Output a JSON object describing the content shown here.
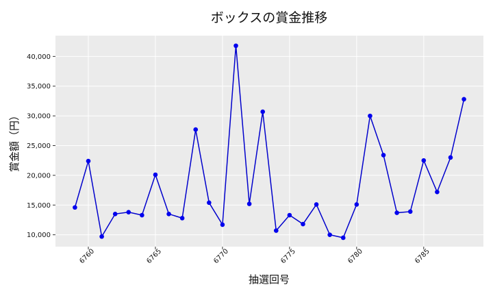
{
  "chart_data": {
    "type": "line",
    "title": "ボックスの賞金推移",
    "xlabel": "抽選回号",
    "ylabel": "賞金額（円）",
    "x": [
      6759,
      6760,
      6761,
      6762,
      6763,
      6764,
      6765,
      6766,
      6767,
      6768,
      6769,
      6770,
      6771,
      6772,
      6773,
      6774,
      6775,
      6776,
      6777,
      6778,
      6779,
      6780,
      6781,
      6782,
      6783,
      6784,
      6785,
      6786,
      6787,
      6788
    ],
    "series": [
      {
        "values": [
          14600,
          22400,
          9700,
          13500,
          13800,
          13300,
          20100,
          13500,
          12800,
          27700,
          15400,
          11700,
          41800,
          15200,
          30700,
          10700,
          13300,
          11800,
          15100,
          10000,
          9500,
          15100,
          30000,
          23400,
          13700,
          13900,
          22500,
          17200,
          23000,
          32800
        ]
      }
    ],
    "xticks": [
      6760,
      6765,
      6770,
      6775,
      6780,
      6785
    ],
    "xlim": [
      6757.55,
      6789.45
    ],
    "yticks": [
      10000,
      15000,
      20000,
      25000,
      30000,
      35000,
      40000
    ],
    "ytick_labels": [
      "10,000",
      "15,000",
      "20,000",
      "25,000",
      "30,000",
      "35,000",
      "40,000"
    ],
    "ylim": [
      8000,
      43500
    ],
    "grid": true,
    "colors": {
      "line": "#0000cc",
      "marker": "#0000ee",
      "plot_bg": "#ebebeb",
      "grid": "#ffffff"
    }
  }
}
